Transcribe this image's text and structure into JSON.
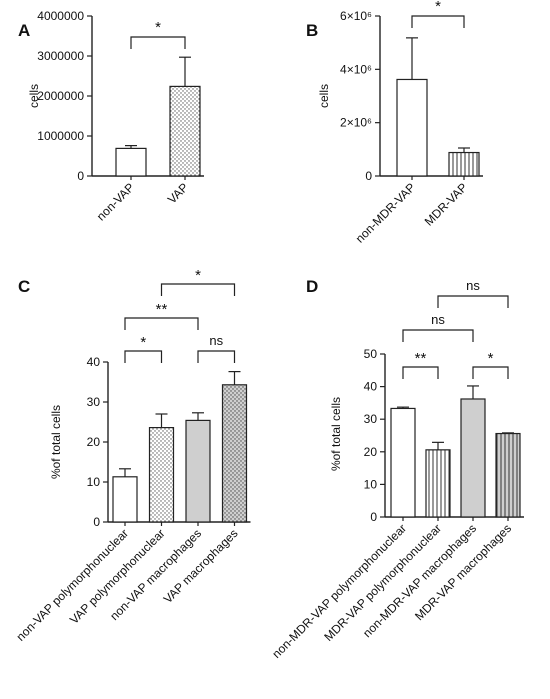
{
  "figure": {
    "panels": {
      "A": "A",
      "B": "B",
      "C": "C",
      "D": "D"
    }
  },
  "chart_data": [
    {
      "panel": "A",
      "type": "bar",
      "categories": [
        "non-VAP",
        "VAP"
      ],
      "values": [
        690000,
        2240000
      ],
      "errors": [
        70000,
        730000
      ],
      "patterns": [
        "none",
        "dots"
      ],
      "ylabel": "cells",
      "ylim": [
        0,
        4000000
      ],
      "yticks": [
        0,
        1000000,
        2000000,
        3000000,
        4000000
      ],
      "yticklabels": [
        "0",
        "1000000",
        "2000000",
        "3000000",
        "4000000"
      ],
      "significance": [
        {
          "from": 0,
          "to": 1,
          "label": "*"
        }
      ]
    },
    {
      "panel": "B",
      "type": "bar",
      "categories": [
        "non-MDR-VAP",
        "MDR-VAP"
      ],
      "values": [
        3620000,
        880000
      ],
      "errors": [
        1560000,
        170000
      ],
      "patterns": [
        "none",
        "vlines"
      ],
      "ylabel": "cells",
      "ylim": [
        0,
        6000000
      ],
      "yticks": [
        0,
        2000000,
        4000000,
        6000000
      ],
      "yticklabels": [
        "0",
        "2×10⁶",
        "4×10⁶",
        "6×10⁶"
      ],
      "significance": [
        {
          "from": 0,
          "to": 1,
          "label": "*"
        }
      ]
    },
    {
      "panel": "C",
      "type": "bar",
      "categories": [
        "non-VAP polymorphonuclear",
        "VAP polymorphonuclear",
        "non-VAP macrophages",
        "VAP macrophages"
      ],
      "values": [
        11.3,
        23.6,
        25.4,
        34.3
      ],
      "errors": [
        2.0,
        3.4,
        1.9,
        3.3
      ],
      "patterns": [
        "none",
        "dots",
        "gray",
        "graydots"
      ],
      "ylabel": "%of total cells",
      "ylim": [
        0,
        40
      ],
      "yticks": [
        0,
        10,
        20,
        30,
        40
      ],
      "yticklabels": [
        "0",
        "10",
        "20",
        "30",
        "40"
      ],
      "significance": [
        {
          "from": 0,
          "to": 1,
          "label": "*"
        },
        {
          "from": 2,
          "to": 3,
          "label": "ns"
        },
        {
          "from": 0,
          "to": 2,
          "label": "**"
        },
        {
          "from": 1,
          "to": 3,
          "label": "*"
        }
      ]
    },
    {
      "panel": "D",
      "type": "bar",
      "categories": [
        "non-MDR-VAP polymorphonuclear",
        "MDR-VAP polymorphonuclear",
        "non-MDR-VAP macrophages",
        "MDR-VAP macrophages"
      ],
      "values": [
        33.3,
        20.6,
        36.2,
        25.6
      ],
      "errors": [
        0.4,
        2.3,
        4.0,
        0.2
      ],
      "patterns": [
        "none",
        "vlines",
        "gray",
        "grayvlines"
      ],
      "ylabel": "%of total cells",
      "ylim": [
        0,
        50
      ],
      "yticks": [
        0,
        10,
        20,
        30,
        40,
        50
      ],
      "yticklabels": [
        "0",
        "10",
        "20",
        "30",
        "40",
        "50"
      ],
      "significance": [
        {
          "from": 0,
          "to": 1,
          "label": "**"
        },
        {
          "from": 2,
          "to": 3,
          "label": "*"
        },
        {
          "from": 0,
          "to": 2,
          "label": "ns"
        },
        {
          "from": 1,
          "to": 3,
          "label": "ns"
        }
      ]
    }
  ]
}
